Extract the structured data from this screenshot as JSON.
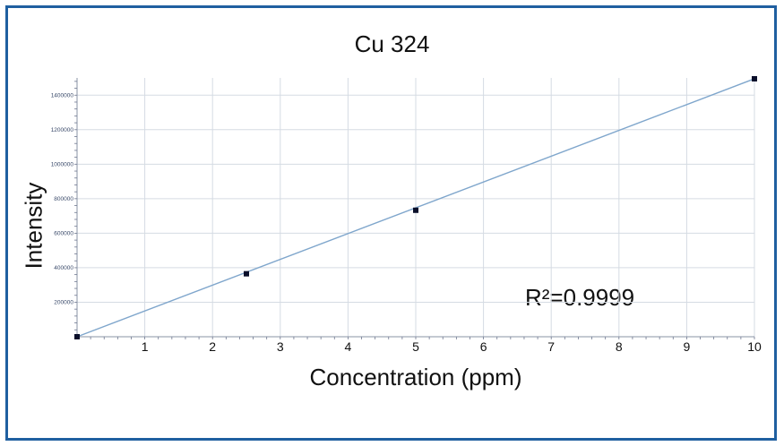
{
  "chart_data": {
    "type": "scatter",
    "title": "Cu 324",
    "xlabel": "Concentration (ppm)",
    "ylabel": "Intensity",
    "annotation": "R²=0.9999",
    "xlim": [
      0,
      10
    ],
    "ylim": [
      0,
      1500000
    ],
    "x_ticks": [
      1,
      2,
      3,
      4,
      5,
      6,
      7,
      8,
      9,
      10
    ],
    "y_ticks": [
      200000,
      400000,
      600000,
      800000,
      1000000,
      1200000,
      1400000
    ],
    "grid": true,
    "series": [
      {
        "points": [
          {
            "x": 0,
            "y": 0
          },
          {
            "x": 2.5,
            "y": 365000
          },
          {
            "x": 5,
            "y": 733000
          },
          {
            "x": 10,
            "y": 1495000
          }
        ]
      }
    ],
    "fit_line": {
      "from": {
        "x": 0,
        "y": 0
      },
      "to": {
        "x": 10,
        "y": 1495000
      }
    },
    "colors": {
      "frame": "#1f5fa0",
      "grid": "#d5dbe3",
      "fit_line": "#7fa6cc",
      "marker": "#0a0f2a",
      "tick_label": "#111111",
      "y_tick_label": "#3a4a6a"
    }
  }
}
